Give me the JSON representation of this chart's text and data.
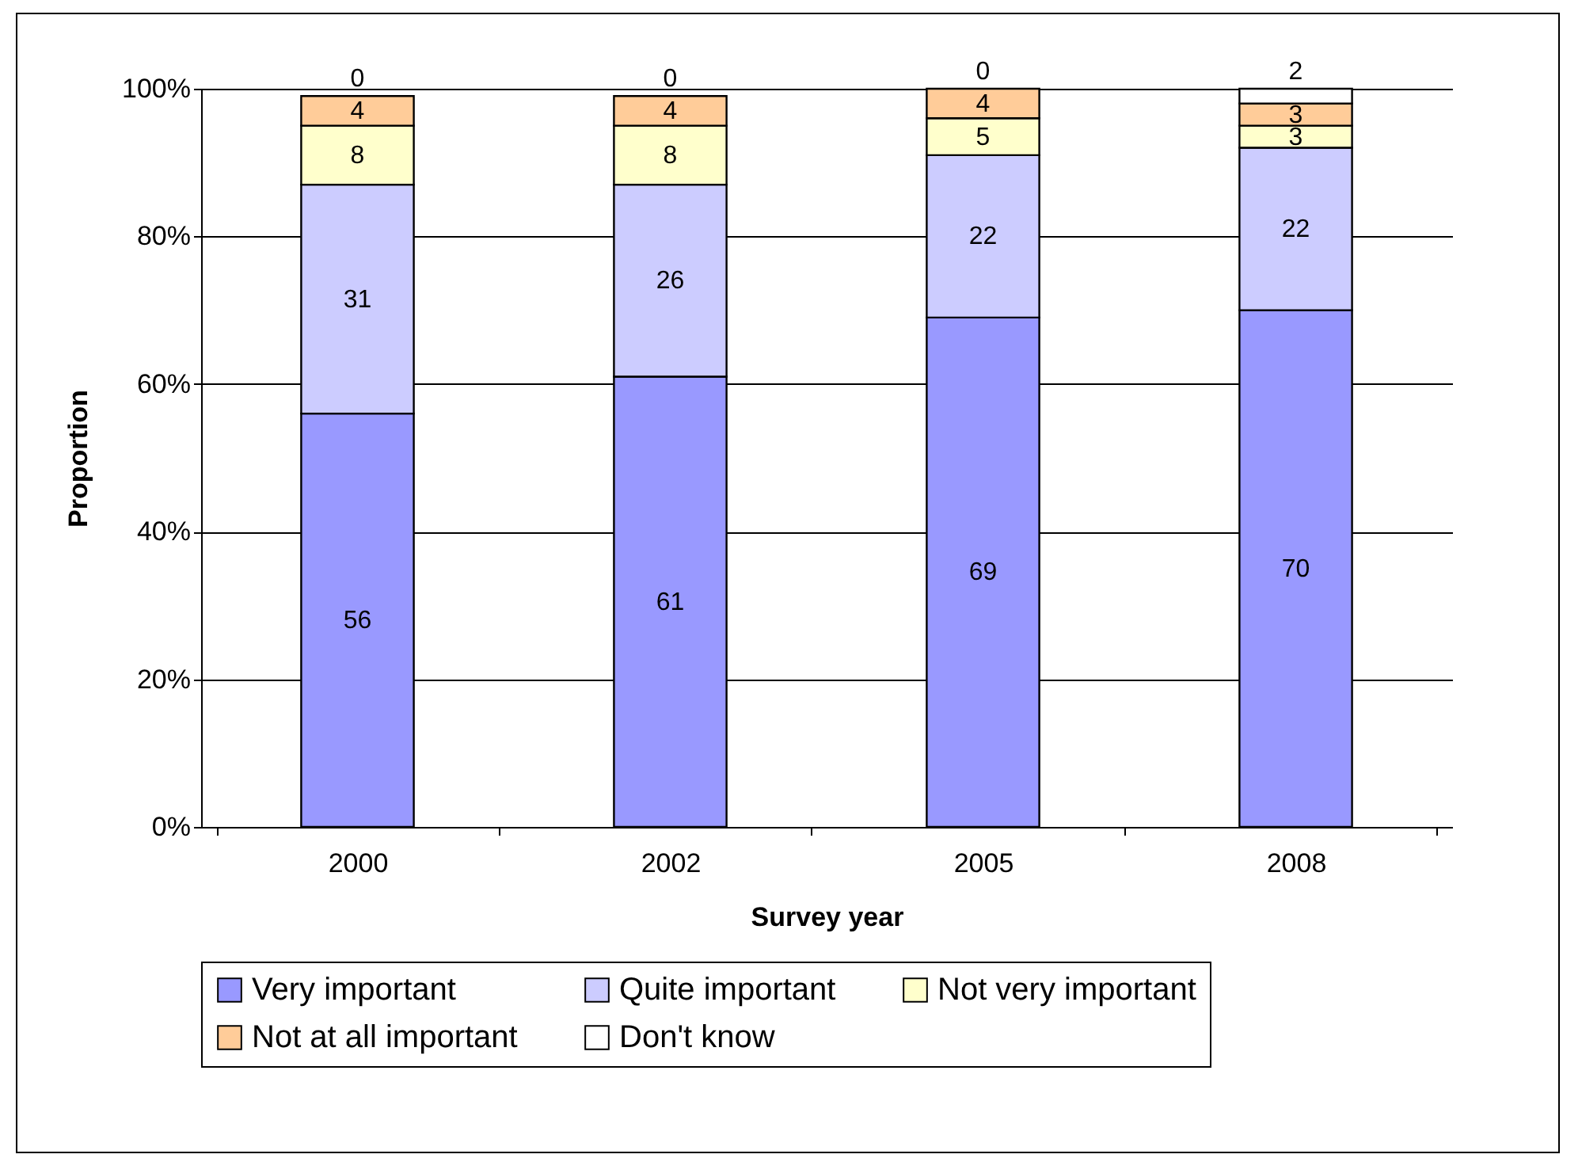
{
  "chart_data": {
    "type": "bar",
    "stacked": true,
    "xlabel": "Survey year",
    "ylabel": "Proportion",
    "categories": [
      "2000",
      "2002",
      "2005",
      "2008"
    ],
    "series": [
      {
        "name": "Very important",
        "color": "#9999ff",
        "values": [
          56,
          61,
          69,
          70
        ]
      },
      {
        "name": "Quite important",
        "color": "#ccccff",
        "values": [
          31,
          26,
          22,
          22
        ]
      },
      {
        "name": "Not very important",
        "color": "#ffffcc",
        "values": [
          8,
          8,
          5,
          3
        ]
      },
      {
        "name": "Not at all important",
        "color": "#ffcc99",
        "values": [
          4,
          4,
          4,
          3
        ]
      },
      {
        "name": "Don't know",
        "color": "#ffffff",
        "values": [
          0,
          0,
          0,
          2
        ]
      }
    ],
    "ylim": [
      0,
      100
    ],
    "yticks": [
      {
        "value": 0,
        "label": "0%"
      },
      {
        "value": 20,
        "label": "20%"
      },
      {
        "value": 40,
        "label": "40%"
      },
      {
        "value": 60,
        "label": "60%"
      },
      {
        "value": 80,
        "label": "80%"
      },
      {
        "value": 100,
        "label": "100%"
      }
    ],
    "grid": "y",
    "legend": "bottom",
    "data_labels": true
  }
}
